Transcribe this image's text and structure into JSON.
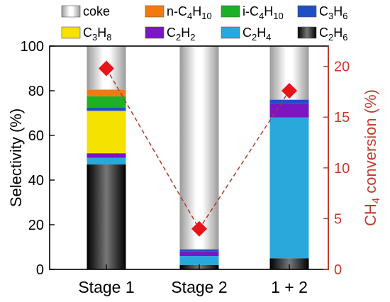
{
  "chart_data": {
    "type": "bar",
    "stacked": true,
    "categories": [
      "Stage 1",
      "Stage 2",
      "1 + 2"
    ],
    "ylabel": "Selectivity (%)",
    "y2label_parts": {
      "prefix": "CH",
      "sub": "4",
      "suffix": " conversion (%)"
    },
    "ylim": [
      0,
      100
    ],
    "y2lim": [
      0,
      22
    ],
    "yticks": [
      "0",
      "20",
      "40",
      "60",
      "80",
      "100"
    ],
    "y2ticks": [
      "0",
      "5",
      "10",
      "15",
      "20"
    ],
    "legend": {
      "placement": "top",
      "items": [
        {
          "key": "coke",
          "parts": [
            [
              "coke",
              ""
            ]
          ]
        },
        {
          "key": "n_c4h10",
          "parts": [
            [
              "n-C",
              ""
            ],
            [
              "4",
              "sub"
            ],
            [
              "H",
              ""
            ],
            [
              "10",
              "sub"
            ]
          ]
        },
        {
          "key": "i_c4h10",
          "parts": [
            [
              "i-C",
              ""
            ],
            [
              "4",
              "sub"
            ],
            [
              "H",
              ""
            ],
            [
              "10",
              "sub"
            ]
          ]
        },
        {
          "key": "c3h6",
          "parts": [
            [
              "C",
              ""
            ],
            [
              "3",
              "sub"
            ],
            [
              "H",
              ""
            ],
            [
              "6",
              "sub"
            ]
          ]
        },
        {
          "key": "c3h8",
          "parts": [
            [
              "C",
              ""
            ],
            [
              "3",
              "sub"
            ],
            [
              "H",
              ""
            ],
            [
              "8",
              "sub"
            ]
          ]
        },
        {
          "key": "c2h2",
          "parts": [
            [
              "C",
              ""
            ],
            [
              "2",
              "sub"
            ],
            [
              "H",
              ""
            ],
            [
              "2",
              "sub"
            ]
          ]
        },
        {
          "key": "c2h4",
          "parts": [
            [
              "C",
              ""
            ],
            [
              "2",
              "sub"
            ],
            [
              "H",
              ""
            ],
            [
              "4",
              "sub"
            ]
          ]
        },
        {
          "key": "c2h6",
          "parts": [
            [
              "C",
              ""
            ],
            [
              "2",
              "sub"
            ],
            [
              "H",
              ""
            ],
            [
              "6",
              "sub"
            ]
          ]
        }
      ]
    },
    "stack_order": [
      "c2h6",
      "c2h4",
      "c2h2",
      "c3h8",
      "c3h6",
      "i_c4h10",
      "n_c4h10",
      "coke"
    ],
    "series": [
      {
        "key": "c2h6",
        "values": [
          47,
          2,
          5
        ]
      },
      {
        "key": "c2h4",
        "values": [
          3,
          4,
          63
        ]
      },
      {
        "key": "c2h2",
        "values": [
          2,
          2,
          6
        ]
      },
      {
        "key": "c3h8",
        "values": [
          19,
          0,
          0
        ]
      },
      {
        "key": "c3h6",
        "values": [
          1.5,
          1,
          2
        ]
      },
      {
        "key": "i_c4h10",
        "values": [
          5,
          0,
          0
        ]
      },
      {
        "key": "n_c4h10",
        "values": [
          3,
          0,
          0
        ]
      },
      {
        "key": "coke",
        "values": [
          19.5,
          91,
          24
        ]
      }
    ],
    "conversion": {
      "values": [
        19.8,
        4.0,
        17.6
      ],
      "axis": "right",
      "marker": "diamond",
      "line": "dashed"
    },
    "colors": {
      "c2h6": "#2a2a2a",
      "c2h4": "#29a8dc",
      "c2h2": "#7a16c2",
      "c3h8": "#f5e200",
      "c3h6": "#1f4fc4",
      "i_c4h10": "#1db024",
      "n_c4h10": "#f07a10",
      "coke": "#c8c8c8",
      "conversion": "#e8141a",
      "conversion_line": "#b23a2a",
      "right_axis": "#c43a2a"
    }
  }
}
